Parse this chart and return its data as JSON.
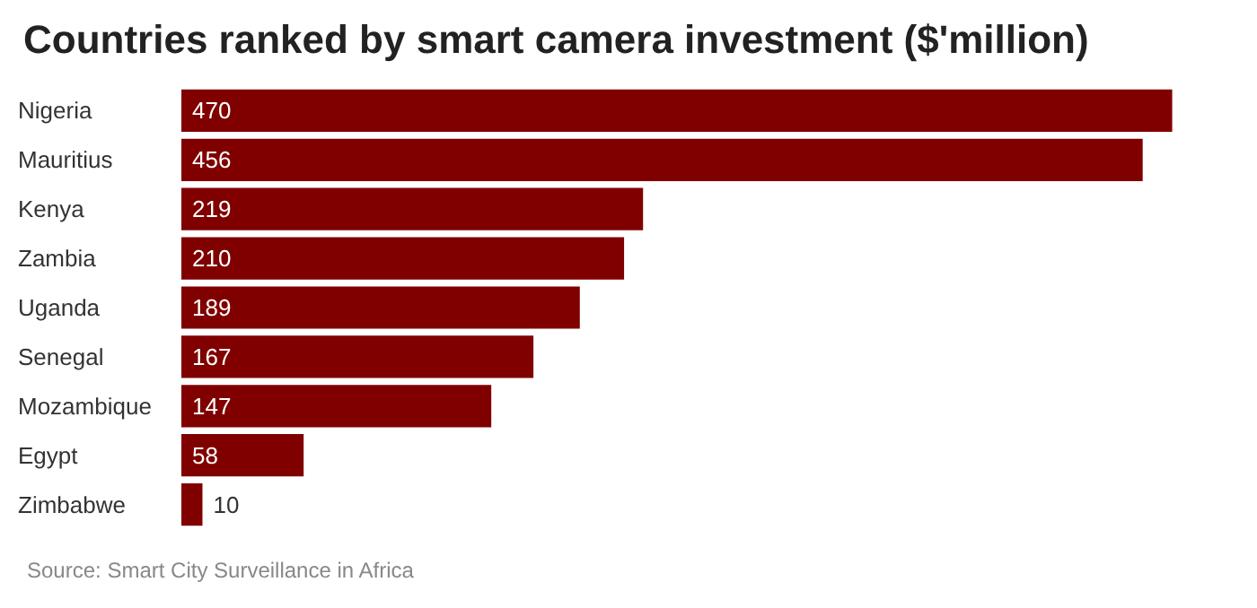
{
  "chart_data": {
    "type": "bar",
    "orientation": "horizontal",
    "title": "Countries ranked by smart camera investment ($'million)",
    "categories": [
      "Nigeria",
      "Mauritius",
      "Kenya",
      "Zambia",
      "Uganda",
      "Senegal",
      "Mozambique",
      "Egypt",
      "Zimbabwe"
    ],
    "values": [
      470,
      456,
      219,
      210,
      189,
      167,
      147,
      58,
      10
    ],
    "color": "#800000",
    "data_labels": true,
    "annotations": [
      "Source: Smart City Surveillance in Africa"
    ]
  }
}
